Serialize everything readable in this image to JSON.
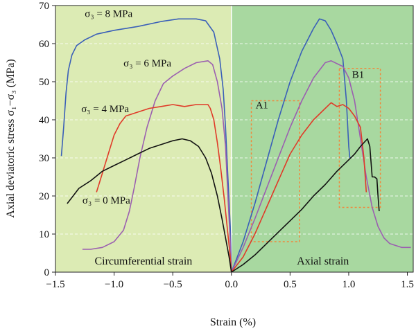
{
  "chart_data": {
    "type": "line",
    "xlabel": "Strain (%)",
    "ylabel": "Axial deviatoric stress σ₁−σ₃ (MPa)",
    "xlim": [
      -1.5,
      1.55
    ],
    "ylim": [
      0,
      70
    ],
    "xticks": [
      -1.5,
      -1.0,
      -0.5,
      0.0,
      0.5,
      1.0,
      1.5
    ],
    "xtick_labels": [
      "−1.5",
      "−1.0",
      "−0.5",
      "0.0",
      "0.5",
      "1.0",
      "1.5"
    ],
    "yticks": [
      0,
      10,
      20,
      30,
      40,
      50,
      60,
      70
    ],
    "ytick_labels": [
      "0",
      "10",
      "20",
      "30",
      "40",
      "50",
      "60",
      "70"
    ],
    "grid": "dashed horizontal",
    "regions": [
      {
        "label": "Circumferential strain",
        "x_range": [
          -1.5,
          0.0
        ],
        "color": "#dcebb4"
      },
      {
        "label": "Axial strain",
        "x_range": [
          0.0,
          1.55
        ],
        "color": "#a8d8a0"
      }
    ],
    "boxes": [
      {
        "label": "A1",
        "x_range": [
          0.17,
          0.58
        ],
        "y_range": [
          8,
          45
        ]
      },
      {
        "label": "B1",
        "x_range": [
          0.92,
          1.27
        ],
        "y_range": [
          17,
          53.5
        ]
      }
    ],
    "series": [
      {
        "name": "σ₃ = 8 MPa",
        "color": "#3a5fb8",
        "circumferential": [
          [
            -1.45,
            30.5
          ],
          [
            -1.43,
            38
          ],
          [
            -1.41,
            47
          ],
          [
            -1.39,
            53
          ],
          [
            -1.36,
            57
          ],
          [
            -1.32,
            59.5
          ],
          [
            -1.25,
            61
          ],
          [
            -1.15,
            62.5
          ],
          [
            -1.0,
            63.5
          ],
          [
            -0.8,
            64.5
          ],
          [
            -0.6,
            65.8
          ],
          [
            -0.45,
            66.5
          ],
          [
            -0.3,
            66.5
          ],
          [
            -0.22,
            66
          ],
          [
            -0.15,
            63
          ],
          [
            -0.1,
            56
          ],
          [
            -0.07,
            48
          ],
          [
            -0.05,
            38
          ],
          [
            -0.03,
            25
          ],
          [
            -0.01,
            12
          ],
          [
            0.0,
            0
          ]
        ],
        "axial": [
          [
            0.0,
            0
          ],
          [
            0.1,
            8
          ],
          [
            0.2,
            18
          ],
          [
            0.3,
            29
          ],
          [
            0.4,
            40
          ],
          [
            0.5,
            50
          ],
          [
            0.6,
            58
          ],
          [
            0.7,
            64
          ],
          [
            0.75,
            66.5
          ],
          [
            0.8,
            66
          ],
          [
            0.85,
            63.5
          ],
          [
            0.9,
            60
          ],
          [
            0.95,
            56
          ],
          [
            0.98,
            45
          ],
          [
            1.0,
            33
          ],
          [
            1.01,
            30
          ]
        ]
      },
      {
        "name": "σ₃ = 6 MPa",
        "color": "#9b5fb0",
        "circumferential": [
          [
            -1.27,
            6
          ],
          [
            -1.2,
            6
          ],
          [
            -1.1,
            6.5
          ],
          [
            -1.0,
            8
          ],
          [
            -0.92,
            11
          ],
          [
            -0.87,
            16
          ],
          [
            -0.83,
            22
          ],
          [
            -0.78,
            30
          ],
          [
            -0.72,
            38
          ],
          [
            -0.65,
            45
          ],
          [
            -0.58,
            49.5
          ],
          [
            -0.5,
            51.5
          ],
          [
            -0.4,
            53.5
          ],
          [
            -0.3,
            55
          ],
          [
            -0.2,
            55.5
          ],
          [
            -0.16,
            54.5
          ],
          [
            -0.12,
            50
          ],
          [
            -0.08,
            43
          ],
          [
            -0.05,
            33
          ],
          [
            -0.03,
            20
          ],
          [
            -0.01,
            8
          ],
          [
            0.0,
            0
          ]
        ],
        "axial": [
          [
            0.0,
            0
          ],
          [
            0.1,
            6.5
          ],
          [
            0.2,
            14
          ],
          [
            0.3,
            22
          ],
          [
            0.4,
            30
          ],
          [
            0.5,
            38
          ],
          [
            0.6,
            45
          ],
          [
            0.7,
            51
          ],
          [
            0.8,
            55
          ],
          [
            0.85,
            55.5
          ],
          [
            0.95,
            54
          ],
          [
            1.0,
            51
          ],
          [
            1.05,
            45
          ],
          [
            1.1,
            35
          ],
          [
            1.15,
            25
          ],
          [
            1.2,
            17
          ],
          [
            1.25,
            12
          ],
          [
            1.3,
            9
          ],
          [
            1.35,
            7.5
          ],
          [
            1.45,
            6.5
          ],
          [
            1.53,
            6.5
          ]
        ]
      },
      {
        "name": "σ₃ = 4 MPa",
        "color": "#e03a28",
        "circumferential": [
          [
            -1.15,
            21
          ],
          [
            -1.1,
            26
          ],
          [
            -1.05,
            31
          ],
          [
            -1.0,
            36
          ],
          [
            -0.95,
            39
          ],
          [
            -0.9,
            41
          ],
          [
            -0.8,
            42
          ],
          [
            -0.7,
            43
          ],
          [
            -0.6,
            43.5
          ],
          [
            -0.5,
            44
          ],
          [
            -0.4,
            43.5
          ],
          [
            -0.3,
            44
          ],
          [
            -0.25,
            44
          ],
          [
            -0.2,
            44
          ],
          [
            -0.18,
            43
          ],
          [
            -0.15,
            40
          ],
          [
            -0.12,
            34
          ],
          [
            -0.09,
            27
          ],
          [
            -0.06,
            19
          ],
          [
            -0.03,
            10
          ],
          [
            -0.01,
            4
          ],
          [
            0.0,
            0
          ]
        ],
        "axial": [
          [
            0.0,
            0
          ],
          [
            0.1,
            4
          ],
          [
            0.2,
            10
          ],
          [
            0.3,
            17
          ],
          [
            0.4,
            24
          ],
          [
            0.5,
            31
          ],
          [
            0.6,
            36
          ],
          [
            0.7,
            40
          ],
          [
            0.8,
            43
          ],
          [
            0.85,
            44.5
          ],
          [
            0.9,
            43.5
          ],
          [
            0.95,
            44
          ],
          [
            1.0,
            43
          ],
          [
            1.05,
            41
          ],
          [
            1.1,
            38
          ],
          [
            1.13,
            30
          ],
          [
            1.15,
            21
          ]
        ]
      },
      {
        "name": "σ₃ = 0 MPa",
        "color": "#111111",
        "circumferential": [
          [
            -1.4,
            18
          ],
          [
            -1.35,
            20
          ],
          [
            -1.3,
            22
          ],
          [
            -1.2,
            24
          ],
          [
            -1.1,
            26.5
          ],
          [
            -1.0,
            28
          ],
          [
            -0.9,
            29.5
          ],
          [
            -0.8,
            31
          ],
          [
            -0.7,
            32.5
          ],
          [
            -0.6,
            33.5
          ],
          [
            -0.5,
            34.5
          ],
          [
            -0.42,
            35
          ],
          [
            -0.35,
            34.5
          ],
          [
            -0.28,
            33
          ],
          [
            -0.22,
            30
          ],
          [
            -0.17,
            26
          ],
          [
            -0.12,
            20
          ],
          [
            -0.08,
            14
          ],
          [
            -0.05,
            9
          ],
          [
            -0.02,
            4
          ],
          [
            0.0,
            0
          ]
        ],
        "axial": [
          [
            0.0,
            0
          ],
          [
            0.1,
            2
          ],
          [
            0.2,
            4.5
          ],
          [
            0.3,
            7.5
          ],
          [
            0.4,
            10.5
          ],
          [
            0.5,
            13.5
          ],
          [
            0.6,
            16.5
          ],
          [
            0.7,
            20
          ],
          [
            0.8,
            23
          ],
          [
            0.9,
            26.5
          ],
          [
            1.0,
            29.5
          ],
          [
            1.05,
            31
          ],
          [
            1.1,
            33
          ],
          [
            1.13,
            34
          ],
          [
            1.16,
            35
          ],
          [
            1.17,
            34
          ],
          [
            1.18,
            33
          ],
          [
            1.19,
            29
          ],
          [
            1.2,
            25
          ],
          [
            1.22,
            25
          ],
          [
            1.24,
            24.5
          ],
          [
            1.25,
            20
          ],
          [
            1.26,
            16
          ]
        ]
      }
    ],
    "annotations": [
      {
        "text": "σ₃ = 8 MPa",
        "x": -1.25,
        "y": 67
      },
      {
        "text": "σ₃ = 6 MPa",
        "x": -0.92,
        "y": 54
      },
      {
        "text": "σ₃ = 4 MPa",
        "x": -1.28,
        "y": 42
      },
      {
        "text": "σ₃ = 0 MPa",
        "x": -1.27,
        "y": 18
      },
      {
        "text": "Circumferential strain",
        "x": -0.75,
        "y": 2
      },
      {
        "text": "Axial strain",
        "x": 0.78,
        "y": 2
      },
      {
        "text": "A1",
        "x": 0.26,
        "y": 43
      },
      {
        "text": "B1",
        "x": 1.08,
        "y": 51
      }
    ]
  }
}
